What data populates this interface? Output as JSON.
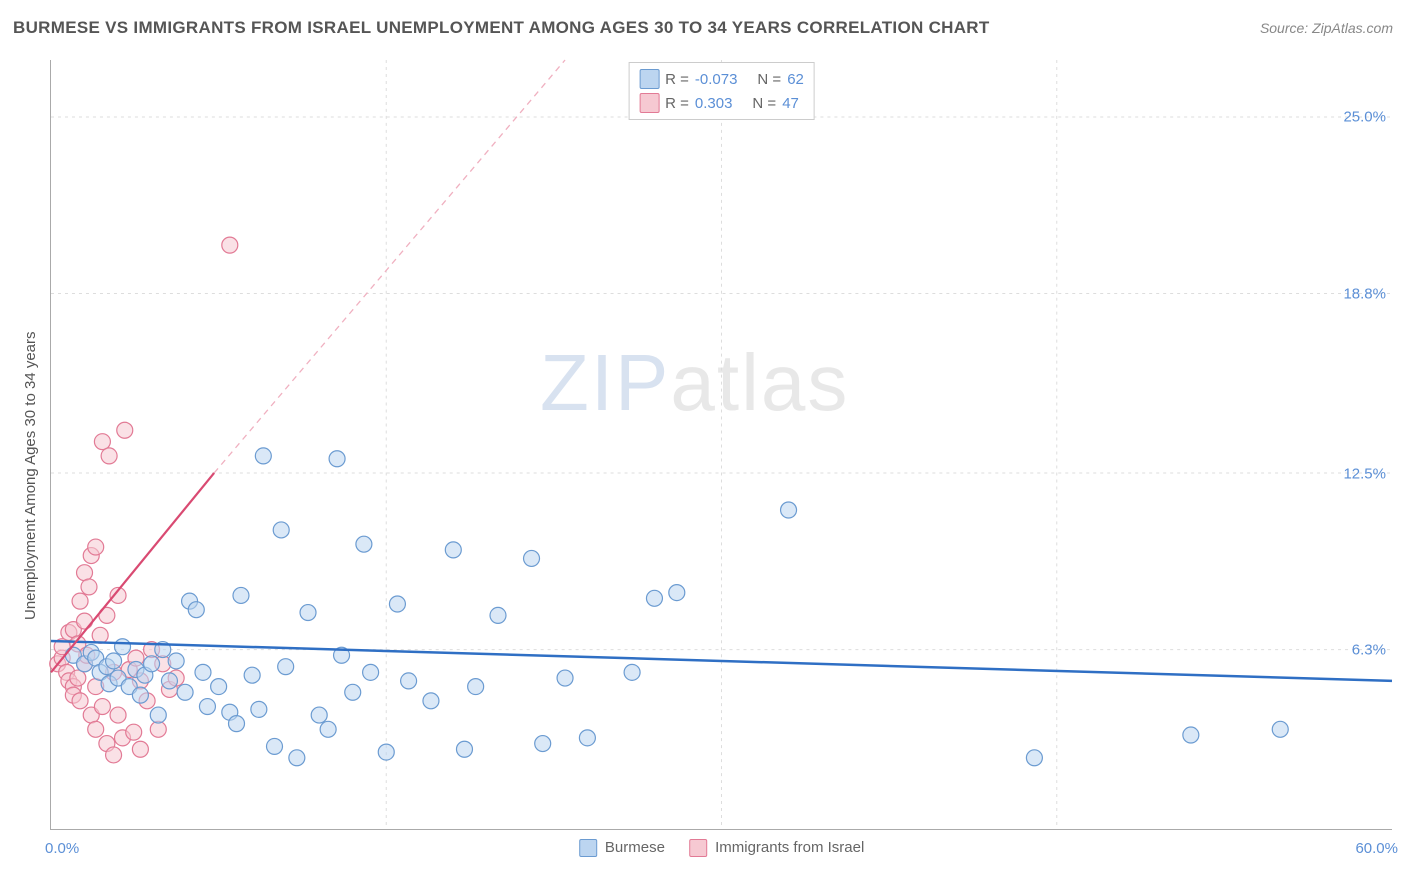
{
  "title": "BURMESE VS IMMIGRANTS FROM ISRAEL UNEMPLOYMENT AMONG AGES 30 TO 34 YEARS CORRELATION CHART",
  "source": "Source: ZipAtlas.com",
  "y_axis_label": "Unemployment Among Ages 30 to 34 years",
  "watermark": {
    "zip": "ZIP",
    "atlas": "atlas"
  },
  "chart": {
    "type": "scatter",
    "xlim": [
      0,
      60
    ],
    "ylim": [
      0,
      27
    ],
    "x_ticks": [
      15,
      30,
      45
    ],
    "y_gridlines": [
      6.3,
      12.5,
      18.8,
      25.0
    ],
    "y_labels_right": [
      "6.3%",
      "12.5%",
      "18.8%",
      "25.0%"
    ],
    "x_min_label": "0.0%",
    "x_max_label": "60.0%",
    "background_color": "#ffffff",
    "grid_color": "#dddddd",
    "axis_color": "#aaaaaa",
    "label_color": "#5b8fd6",
    "marker_radius": 8,
    "marker_opacity": 0.55,
    "series": [
      {
        "name": "Burmese",
        "color_fill": "#bcd5f0",
        "color_stroke": "#6b9bd1",
        "R": "-0.073",
        "N": "62",
        "trendline": {
          "x1": 0,
          "y1": 6.6,
          "x2": 60,
          "y2": 5.2,
          "solid": true,
          "color": "#2f6fc4",
          "width": 2.5,
          "dash": ""
        },
        "points": [
          [
            1.0,
            6.1
          ],
          [
            1.5,
            5.8
          ],
          [
            1.8,
            6.2
          ],
          [
            2.0,
            6.0
          ],
          [
            2.2,
            5.5
          ],
          [
            2.5,
            5.7
          ],
          [
            2.6,
            5.1
          ],
          [
            2.8,
            5.9
          ],
          [
            3.0,
            5.3
          ],
          [
            3.2,
            6.4
          ],
          [
            3.5,
            5.0
          ],
          [
            3.8,
            5.6
          ],
          [
            4.0,
            4.7
          ],
          [
            4.2,
            5.4
          ],
          [
            4.5,
            5.8
          ],
          [
            4.8,
            4.0
          ],
          [
            5.0,
            6.3
          ],
          [
            5.3,
            5.2
          ],
          [
            5.6,
            5.9
          ],
          [
            6.0,
            4.8
          ],
          [
            6.2,
            8.0
          ],
          [
            6.5,
            7.7
          ],
          [
            6.8,
            5.5
          ],
          [
            7.0,
            4.3
          ],
          [
            7.5,
            5.0
          ],
          [
            8.0,
            4.1
          ],
          [
            8.3,
            3.7
          ],
          [
            8.5,
            8.2
          ],
          [
            9.0,
            5.4
          ],
          [
            9.3,
            4.2
          ],
          [
            9.5,
            13.1
          ],
          [
            10.0,
            2.9
          ],
          [
            10.3,
            10.5
          ],
          [
            10.5,
            5.7
          ],
          [
            11.0,
            2.5
          ],
          [
            11.5,
            7.6
          ],
          [
            12.0,
            4.0
          ],
          [
            12.4,
            3.5
          ],
          [
            12.8,
            13.0
          ],
          [
            13.0,
            6.1
          ],
          [
            13.5,
            4.8
          ],
          [
            14.0,
            10.0
          ],
          [
            14.3,
            5.5
          ],
          [
            15.0,
            2.7
          ],
          [
            15.5,
            7.9
          ],
          [
            16.0,
            5.2
          ],
          [
            17.0,
            4.5
          ],
          [
            18.0,
            9.8
          ],
          [
            18.5,
            2.8
          ],
          [
            19.0,
            5.0
          ],
          [
            20.0,
            7.5
          ],
          [
            21.5,
            9.5
          ],
          [
            22.0,
            3.0
          ],
          [
            23.0,
            5.3
          ],
          [
            24.0,
            3.2
          ],
          [
            26.0,
            5.5
          ],
          [
            27.0,
            8.1
          ],
          [
            28.0,
            8.3
          ],
          [
            33.0,
            11.2
          ],
          [
            44.0,
            2.5
          ],
          [
            51.0,
            3.3
          ],
          [
            55.0,
            3.5
          ]
        ]
      },
      {
        "name": "Immigrants from Israel",
        "color_fill": "#f6c9d2",
        "color_stroke": "#e27a95",
        "R": "0.303",
        "N": "47",
        "trendline": {
          "x1": 0,
          "y1": 5.5,
          "x2": 7.3,
          "y2": 12.5,
          "solid": true,
          "color": "#d94a72",
          "width": 2.2,
          "dash": ""
        },
        "trendline_ext": {
          "x1": 7.3,
          "y1": 12.5,
          "x2": 23,
          "y2": 27,
          "color": "#f0b0c0",
          "width": 1.3,
          "dash": "6,5"
        },
        "points": [
          [
            0.3,
            5.8
          ],
          [
            0.5,
            6.0
          ],
          [
            0.5,
            6.4
          ],
          [
            0.7,
            5.5
          ],
          [
            0.8,
            6.9
          ],
          [
            0.8,
            5.2
          ],
          [
            1.0,
            7.0
          ],
          [
            1.0,
            5.0
          ],
          [
            1.0,
            4.7
          ],
          [
            1.2,
            6.5
          ],
          [
            1.2,
            5.3
          ],
          [
            1.3,
            8.0
          ],
          [
            1.3,
            4.5
          ],
          [
            1.5,
            9.0
          ],
          [
            1.5,
            7.3
          ],
          [
            1.5,
            5.8
          ],
          [
            1.6,
            6.1
          ],
          [
            1.7,
            8.5
          ],
          [
            1.8,
            4.0
          ],
          [
            1.8,
            9.6
          ],
          [
            2.0,
            9.9
          ],
          [
            2.0,
            5.0
          ],
          [
            2.0,
            3.5
          ],
          [
            2.2,
            6.8
          ],
          [
            2.3,
            13.6
          ],
          [
            2.3,
            4.3
          ],
          [
            2.5,
            7.5
          ],
          [
            2.5,
            3.0
          ],
          [
            2.6,
            13.1
          ],
          [
            2.8,
            5.5
          ],
          [
            2.8,
            2.6
          ],
          [
            3.0,
            8.2
          ],
          [
            3.0,
            4.0
          ],
          [
            3.2,
            3.2
          ],
          [
            3.3,
            14.0
          ],
          [
            3.5,
            5.6
          ],
          [
            3.7,
            3.4
          ],
          [
            3.8,
            6.0
          ],
          [
            4.0,
            5.2
          ],
          [
            4.0,
            2.8
          ],
          [
            4.3,
            4.5
          ],
          [
            4.5,
            6.3
          ],
          [
            4.8,
            3.5
          ],
          [
            5.0,
            5.8
          ],
          [
            5.3,
            4.9
          ],
          [
            5.6,
            5.3
          ],
          [
            8.0,
            20.5
          ]
        ]
      }
    ]
  },
  "legend_top": [
    {
      "swatch_fill": "#bcd5f0",
      "swatch_stroke": "#6b9bd1",
      "r_label": "R =",
      "r_val": "-0.073",
      "n_label": "N =",
      "n_val": "62"
    },
    {
      "swatch_fill": "#f6c9d2",
      "swatch_stroke": "#e27a95",
      "r_label": "R =",
      "r_val": " 0.303",
      "n_label": "N =",
      "n_val": "47"
    }
  ],
  "legend_bottom": [
    {
      "swatch_fill": "#bcd5f0",
      "swatch_stroke": "#6b9bd1",
      "label": "Burmese"
    },
    {
      "swatch_fill": "#f6c9d2",
      "swatch_stroke": "#e27a95",
      "label": "Immigrants from Israel"
    }
  ]
}
